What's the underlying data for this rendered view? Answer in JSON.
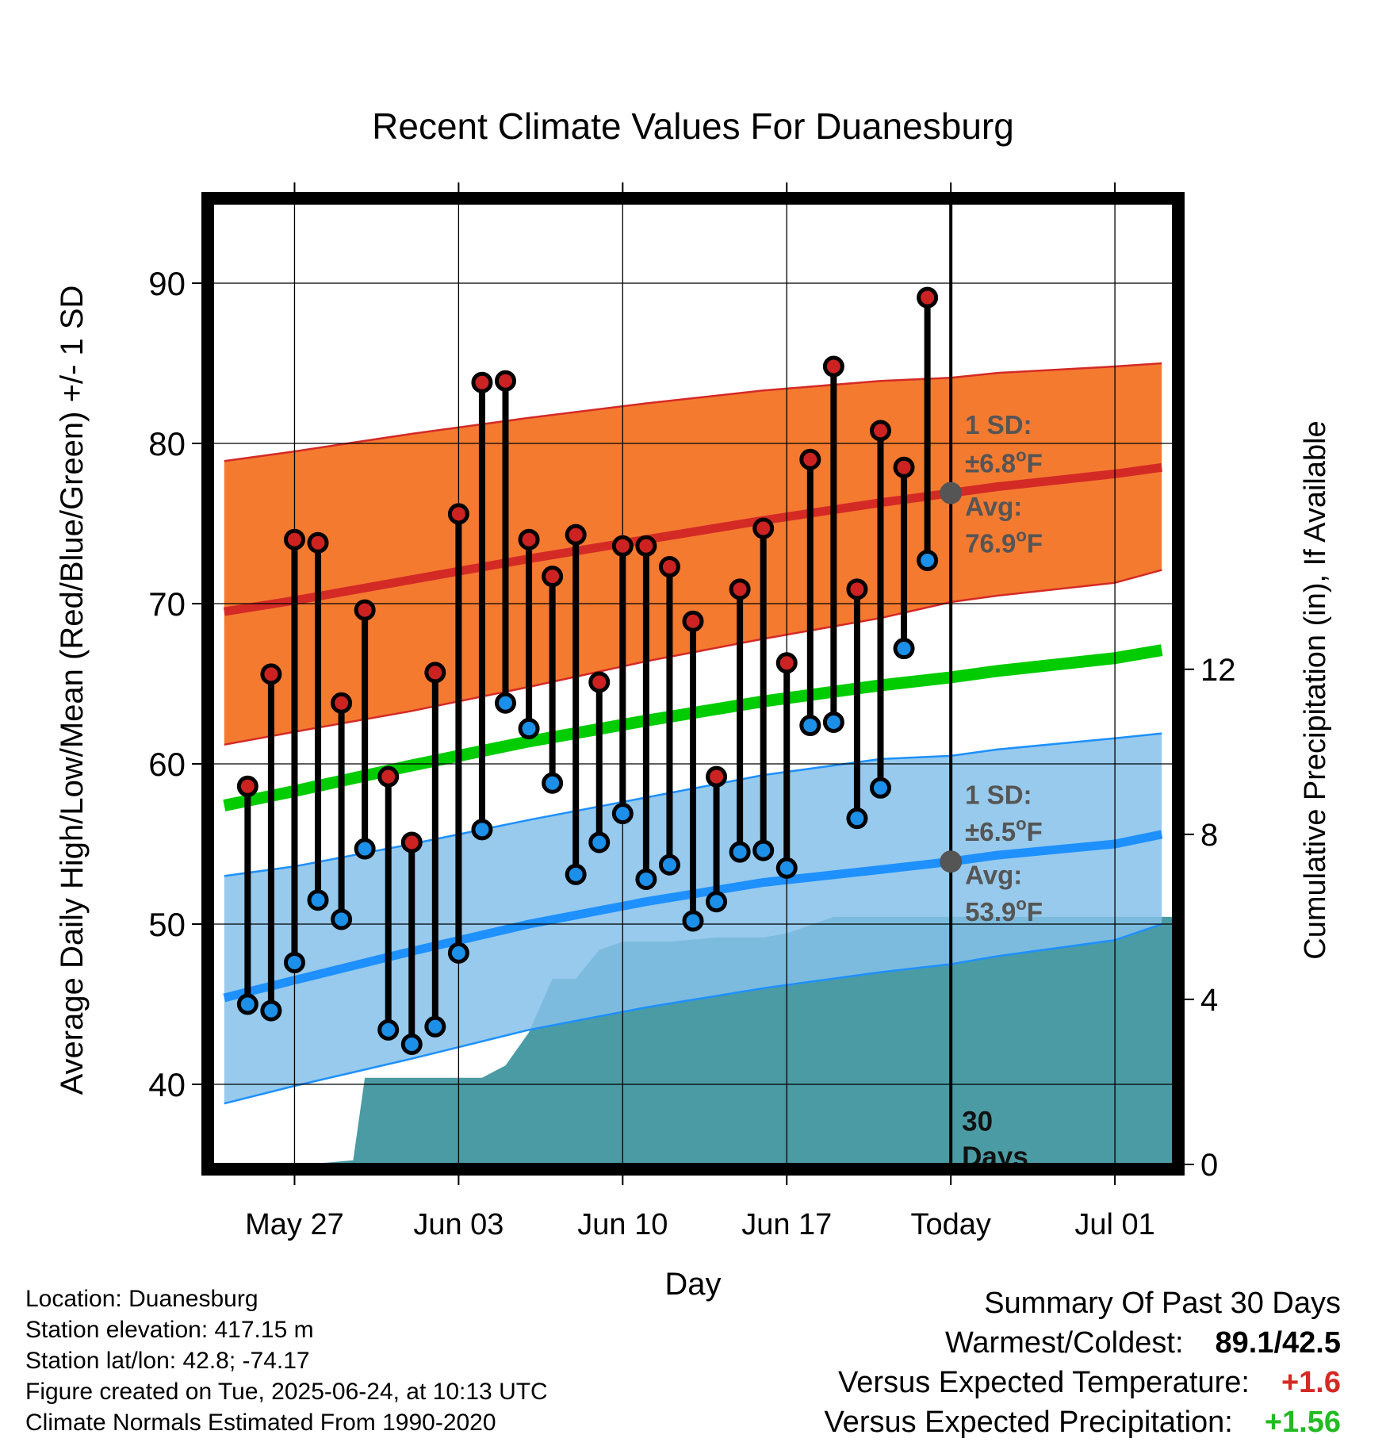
{
  "chart_data": {
    "type": "line",
    "title": "Recent Climate Values For Duanesburg",
    "xlabel": "Day",
    "ylabel": "Average Daily High/Low/Mean (Red/Blue/Green) +/- 1 SD",
    "y2label": "Cumulative Precipitation (in), If Available",
    "x_ticks": [
      "May 27",
      "Jun 03",
      "Jun 10",
      "Jun 17",
      "Today",
      "Jul 01"
    ],
    "x_tick_days": [
      0,
      7,
      14,
      21,
      28,
      35
    ],
    "y_ticks": [
      40,
      50,
      60,
      70,
      80,
      90
    ],
    "ylim": [
      35,
      95
    ],
    "y2_ticks": [
      0,
      4,
      8,
      12
    ],
    "y2lim": [
      0,
      23.3
    ],
    "xlim_days": [
      -3.5,
      37.5
    ],
    "day_zero": "2025-05-27",
    "grid": true,
    "highs": [
      58.6,
      65.6,
      74.0,
      73.8,
      63.8,
      69.6,
      59.2,
      55.1,
      65.7,
      75.6,
      83.8,
      83.9,
      74.0,
      71.7,
      74.3,
      65.1,
      73.6,
      73.6,
      72.3,
      68.9,
      59.2,
      70.9,
      74.7,
      66.3,
      79.0,
      84.8,
      70.9,
      80.8,
      78.5,
      89.1
    ],
    "lows": [
      45.0,
      44.6,
      47.6,
      51.5,
      50.3,
      54.7,
      43.4,
      42.5,
      43.6,
      48.2,
      55.9,
      63.8,
      62.2,
      58.8,
      53.1,
      55.1,
      56.9,
      52.8,
      53.7,
      50.2,
      51.4,
      54.5,
      54.6,
      53.5,
      62.4,
      62.6,
      56.6,
      58.5,
      67.2,
      72.7
    ],
    "obs_days": [
      -2,
      -1,
      0,
      1,
      2,
      3,
      4,
      5,
      6,
      7,
      8,
      9,
      10,
      11,
      12,
      13,
      14,
      15,
      16,
      17,
      18,
      19,
      20,
      21,
      22,
      23,
      24,
      25,
      26,
      27
    ],
    "normal_days": [
      -3,
      0,
      5,
      10,
      15,
      20,
      25,
      28,
      30,
      35,
      37
    ],
    "normal_high": [
      69.5,
      70.2,
      71.5,
      72.8,
      74.0,
      75.2,
      76.3,
      76.9,
      77.3,
      78.1,
      78.5
    ],
    "normal_low": [
      45.4,
      46.5,
      48.3,
      50.0,
      51.4,
      52.6,
      53.4,
      53.9,
      54.3,
      55.0,
      55.6
    ],
    "normal_mean": [
      57.4,
      58.3,
      59.9,
      61.4,
      62.7,
      63.9,
      64.9,
      65.4,
      65.8,
      66.6,
      67.1
    ],
    "high_sd_band": {
      "lower": [
        61.2,
        62.0,
        63.3,
        64.8,
        66.4,
        67.8,
        69.1,
        70.1,
        70.5,
        71.3,
        72.1
      ],
      "upper": [
        78.9,
        79.5,
        80.6,
        81.6,
        82.5,
        83.3,
        83.9,
        84.1,
        84.4,
        84.8,
        85.0
      ]
    },
    "low_sd_band": {
      "lower": [
        38.8,
        39.9,
        41.6,
        43.4,
        44.8,
        46.0,
        47.0,
        47.5,
        48.0,
        49.0,
        50.0
      ],
      "upper": [
        53.0,
        53.6,
        55.0,
        56.5,
        57.9,
        59.3,
        60.3,
        60.5,
        60.9,
        61.6,
        61.9
      ]
    },
    "precip_days": [
      -3.5,
      0.5,
      2.5,
      3.0,
      8.0,
      9.0,
      10.0,
      11.0,
      12.0,
      13.0,
      14.0,
      16.0,
      18.0,
      20.0,
      21.0,
      22.0,
      23.0,
      25.0,
      28.0,
      37.5
    ],
    "precip_cum": [
      0.0,
      0.0,
      0.1,
      2.1,
      2.1,
      2.4,
      3.2,
      4.5,
      4.5,
      5.2,
      5.4,
      5.4,
      5.5,
      5.5,
      5.6,
      5.8,
      6.0,
      6.0,
      6.0,
      6.0
    ],
    "annotations": {
      "high_sd": "1 SD:",
      "high_sd_val": "±6.8",
      "high_avg": "Avg:",
      "high_avg_val": "76.9",
      "low_sd": "1 SD:",
      "low_sd_val": "±6.5",
      "low_avg": "Avg:",
      "low_avg_val": "53.9",
      "unit": "F",
      "degree": "o",
      "days_line1": "30",
      "days_line2": "Days"
    },
    "colors": {
      "high": "#d42a26",
      "low": "#1e90ff",
      "mean": "#00cc00",
      "high_band": "#f47a30",
      "low_band": "#85c1e9",
      "precip": "#4a9ba4",
      "marker_high": "#cc2222",
      "marker_low": "#1c8fe8",
      "today_marker": "#555555"
    }
  },
  "footer": {
    "location": "Location: Duanesburg",
    "elevation": "Station elevation: 417.15 m",
    "latlon": "Station lat/lon: 42.8; -74.17",
    "created": "Figure created on Tue, 2025-06-24, at 10:13 UTC",
    "normals": "Climate Normals Estimated From 1990-2020"
  },
  "summary": {
    "title": "Summary Of Past 30 Days",
    "warm_cold_label": "Warmest/Coldest:",
    "warm_cold_value": "89.1/42.5",
    "temp_label": "Versus Expected Temperature:",
    "temp_value": "+1.6",
    "temp_color": "#d42a26",
    "precip_label": "Versus Expected Precipitation:",
    "precip_value": "+1.56",
    "precip_color": "#22bb22"
  }
}
